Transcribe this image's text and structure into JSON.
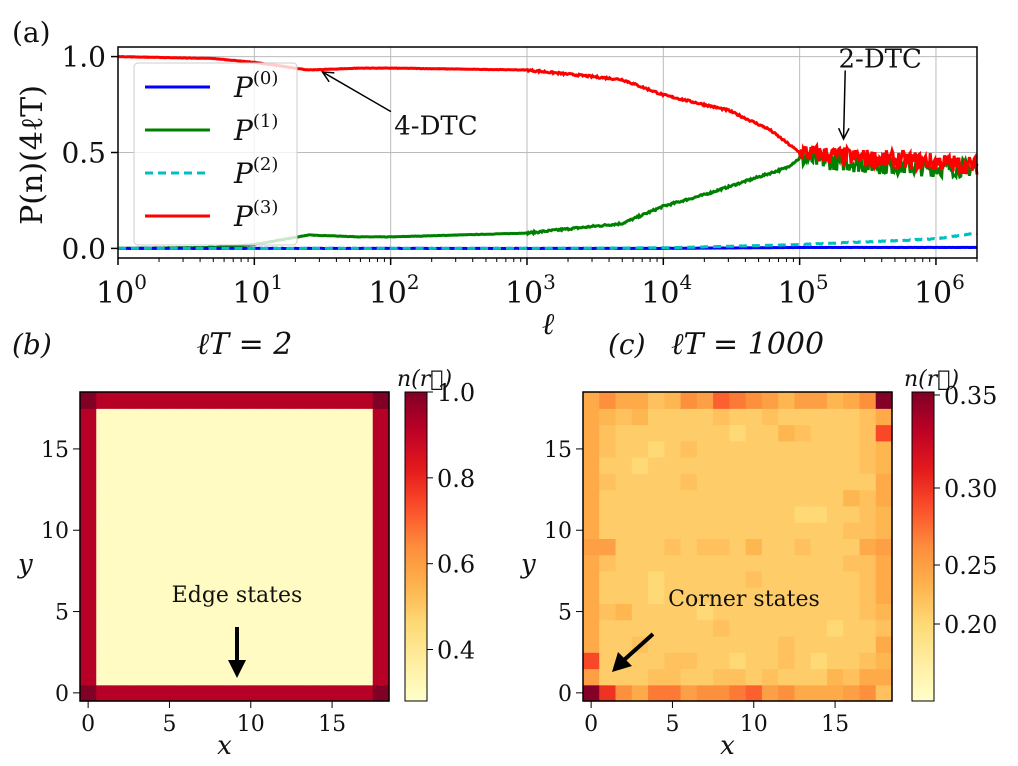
{
  "chart_data": [
    {
      "type": "line",
      "panel_label": "(a)",
      "xlabel": "ℓ",
      "ylabel": "P(n)(4ℓT)",
      "xscale": "log",
      "xlim": [
        1,
        2000000
      ],
      "ylim": [
        -0.05,
        1.05
      ],
      "xticks": [
        {
          "v": 1,
          "label": "10",
          "exp": "0"
        },
        {
          "v": 10,
          "label": "10",
          "exp": "1"
        },
        {
          "v": 100,
          "label": "10",
          "exp": "2"
        },
        {
          "v": 1000,
          "label": "10",
          "exp": "3"
        },
        {
          "v": 10000,
          "label": "10",
          "exp": "4"
        },
        {
          "v": 100000,
          "label": "10",
          "exp": "5"
        },
        {
          "v": 1000000,
          "label": "10",
          "exp": "6"
        }
      ],
      "yticks": [
        {
          "v": 0,
          "label": "0.0"
        },
        {
          "v": 0.5,
          "label": "0.5"
        },
        {
          "v": 1,
          "label": "1.0"
        }
      ],
      "grid": true,
      "legend_position": "left",
      "series": [
        {
          "name": "P(0)",
          "base": "P",
          "sup": "(0)",
          "color": "#0000ff",
          "dash": false,
          "x": [
            1,
            10,
            100,
            1000,
            10000,
            100000,
            1000000,
            2000000
          ],
          "y": [
            0,
            0,
            0,
            0,
            0,
            0.005,
            0.005,
            0.005
          ]
        },
        {
          "name": "P(1)",
          "base": "P",
          "sup": "(1)",
          "color": "#008000",
          "dash": false,
          "x": [
            1,
            5,
            10,
            25,
            60,
            100,
            1000,
            5000,
            10000,
            20000,
            40000,
            80000,
            100000,
            300000,
            1000000,
            2000000
          ],
          "y": [
            0,
            0.005,
            0.02,
            0.07,
            0.06,
            0.06,
            0.08,
            0.13,
            0.22,
            0.28,
            0.35,
            0.42,
            0.47,
            0.44,
            0.42,
            0.42
          ]
        },
        {
          "name": "P(2)",
          "base": "P",
          "sup": "(2)",
          "color": "#00bfbf",
          "dash": true,
          "x": [
            1,
            10,
            100,
            1000,
            10000,
            100000,
            500000,
            1000000,
            2000000
          ],
          "y": [
            0,
            0,
            0,
            0,
            0.003,
            0.02,
            0.04,
            0.05,
            0.08
          ]
        },
        {
          "name": "P(3)",
          "base": "P",
          "sup": "(3)",
          "color": "#ff0000",
          "dash": false,
          "x": [
            1,
            5,
            10,
            25,
            60,
            100,
            1000,
            5000,
            10000,
            30000,
            60000,
            100000,
            300000,
            1000000,
            2000000
          ],
          "y": [
            1,
            0.99,
            0.97,
            0.93,
            0.94,
            0.94,
            0.93,
            0.88,
            0.8,
            0.72,
            0.62,
            0.5,
            0.47,
            0.45,
            0.43
          ]
        }
      ],
      "annotations": [
        {
          "text": "4-DTC",
          "text_at": [
            215,
            0.64
          ],
          "arrow_to": [
            31.6,
            0.92
          ]
        },
        {
          "text": "2-DTC",
          "text_at": [
            390000,
            0.99
          ],
          "arrow_to": [
            210000,
            0.57
          ]
        }
      ]
    },
    {
      "type": "heatmap",
      "panel_label": "(b)",
      "title": "ℓT = 2",
      "xlabel": "x",
      "ylabel": "y",
      "xticks": [
        0,
        5,
        10,
        15
      ],
      "yticks": [
        0,
        5,
        10,
        15
      ],
      "colorbar_label": "n(r⃗)",
      "colorbar_ticks": [
        {
          "v": 0.4,
          "label": "0.4"
        },
        {
          "v": 0.6,
          "label": "0.6"
        },
        {
          "v": 0.8,
          "label": "0.8"
        },
        {
          "v": 1.0,
          "label": "1.0"
        }
      ],
      "clim": [
        0.28,
        1.0
      ],
      "colormap": "YlOrRd",
      "size": 19,
      "values": {
        "corner": 1.0,
        "edge": 0.92,
        "interior": 0.3
      },
      "annotation": {
        "text": "Edge states"
      }
    },
    {
      "type": "heatmap",
      "panel_label": "(c)",
      "title": "ℓT = 1000",
      "xlabel": "x",
      "ylabel": "y",
      "xticks": [
        0,
        5,
        10,
        15
      ],
      "yticks": [
        0,
        5,
        10,
        15
      ],
      "colorbar_label": "n(r⃗)",
      "colorbar_ticks": [
        {
          "v": 0.2,
          "label": "0.20"
        },
        {
          "v": 0.25,
          "label": "0.25"
        },
        {
          "v": 0.3,
          "label": "0.30"
        },
        {
          "v": 0.35,
          "label": "0.35"
        }
      ],
      "clim": [
        0.165,
        0.35
      ],
      "colormap": "YlOrRd",
      "rows_from_y0": [
        [
          0.35,
          0.3,
          0.26,
          0.24,
          0.27,
          0.27,
          0.25,
          0.26,
          0.26,
          0.27,
          0.28,
          0.25,
          0.26,
          0.24,
          0.24,
          0.24,
          0.25,
          0.26,
          0.22
        ],
        [
          0.25,
          0.21,
          0.21,
          0.21,
          0.22,
          0.22,
          0.21,
          0.21,
          0.22,
          0.22,
          0.21,
          0.22,
          0.21,
          0.21,
          0.21,
          0.23,
          0.22,
          0.24,
          0.24
        ],
        [
          0.29,
          0.21,
          0.21,
          0.21,
          0.21,
          0.22,
          0.22,
          0.21,
          0.21,
          0.2,
          0.21,
          0.21,
          0.22,
          0.21,
          0.2,
          0.21,
          0.21,
          0.22,
          0.23
        ],
        [
          0.24,
          0.21,
          0.21,
          0.22,
          0.21,
          0.21,
          0.21,
          0.21,
          0.21,
          0.21,
          0.21,
          0.21,
          0.22,
          0.21,
          0.21,
          0.21,
          0.21,
          0.21,
          0.24
        ],
        [
          0.24,
          0.21,
          0.21,
          0.21,
          0.21,
          0.21,
          0.21,
          0.21,
          0.22,
          0.21,
          0.21,
          0.21,
          0.21,
          0.21,
          0.21,
          0.2,
          0.21,
          0.21,
          0.22
        ],
        [
          0.24,
          0.22,
          0.23,
          0.21,
          0.21,
          0.21,
          0.21,
          0.2,
          0.21,
          0.21,
          0.21,
          0.21,
          0.21,
          0.21,
          0.21,
          0.21,
          0.21,
          0.22,
          0.23
        ],
        [
          0.24,
          0.21,
          0.21,
          0.21,
          0.2,
          0.21,
          0.21,
          0.21,
          0.21,
          0.21,
          0.21,
          0.21,
          0.21,
          0.21,
          0.21,
          0.21,
          0.21,
          0.22,
          0.24
        ],
        [
          0.24,
          0.21,
          0.21,
          0.21,
          0.2,
          0.21,
          0.21,
          0.21,
          0.21,
          0.21,
          0.22,
          0.21,
          0.21,
          0.21,
          0.21,
          0.21,
          0.21,
          0.22,
          0.24
        ],
        [
          0.24,
          0.22,
          0.21,
          0.21,
          0.21,
          0.21,
          0.21,
          0.21,
          0.21,
          0.21,
          0.21,
          0.21,
          0.21,
          0.21,
          0.21,
          0.21,
          0.22,
          0.22,
          0.24
        ],
        [
          0.25,
          0.25,
          0.21,
          0.21,
          0.21,
          0.22,
          0.21,
          0.22,
          0.22,
          0.21,
          0.23,
          0.21,
          0.21,
          0.22,
          0.21,
          0.21,
          0.21,
          0.24,
          0.25
        ],
        [
          0.24,
          0.21,
          0.21,
          0.21,
          0.21,
          0.21,
          0.21,
          0.21,
          0.21,
          0.21,
          0.21,
          0.21,
          0.21,
          0.21,
          0.21,
          0.21,
          0.22,
          0.22,
          0.23
        ],
        [
          0.24,
          0.21,
          0.21,
          0.21,
          0.21,
          0.21,
          0.21,
          0.21,
          0.21,
          0.21,
          0.21,
          0.21,
          0.21,
          0.2,
          0.2,
          0.21,
          0.21,
          0.22,
          0.23
        ],
        [
          0.24,
          0.21,
          0.21,
          0.21,
          0.21,
          0.21,
          0.21,
          0.21,
          0.21,
          0.21,
          0.21,
          0.21,
          0.21,
          0.21,
          0.21,
          0.21,
          0.23,
          0.22,
          0.24
        ],
        [
          0.24,
          0.22,
          0.21,
          0.21,
          0.21,
          0.21,
          0.22,
          0.21,
          0.21,
          0.21,
          0.21,
          0.21,
          0.21,
          0.21,
          0.21,
          0.21,
          0.21,
          0.21,
          0.24
        ],
        [
          0.24,
          0.21,
          0.21,
          0.2,
          0.21,
          0.21,
          0.21,
          0.21,
          0.21,
          0.21,
          0.21,
          0.21,
          0.21,
          0.21,
          0.21,
          0.21,
          0.21,
          0.22,
          0.23
        ],
        [
          0.24,
          0.22,
          0.21,
          0.21,
          0.2,
          0.21,
          0.22,
          0.21,
          0.21,
          0.21,
          0.21,
          0.21,
          0.21,
          0.21,
          0.21,
          0.21,
          0.21,
          0.22,
          0.23
        ],
        [
          0.24,
          0.22,
          0.21,
          0.21,
          0.21,
          0.21,
          0.21,
          0.21,
          0.21,
          0.2,
          0.21,
          0.21,
          0.23,
          0.22,
          0.21,
          0.21,
          0.21,
          0.22,
          0.29
        ],
        [
          0.24,
          0.23,
          0.22,
          0.23,
          0.21,
          0.21,
          0.21,
          0.21,
          0.22,
          0.21,
          0.21,
          0.22,
          0.21,
          0.21,
          0.21,
          0.21,
          0.21,
          0.22,
          0.24
        ],
        [
          0.24,
          0.26,
          0.24,
          0.24,
          0.22,
          0.23,
          0.26,
          0.25,
          0.28,
          0.27,
          0.26,
          0.25,
          0.23,
          0.25,
          0.25,
          0.23,
          0.24,
          0.26,
          0.35
        ]
      ],
      "annotation": {
        "text": "Corner states"
      }
    }
  ]
}
